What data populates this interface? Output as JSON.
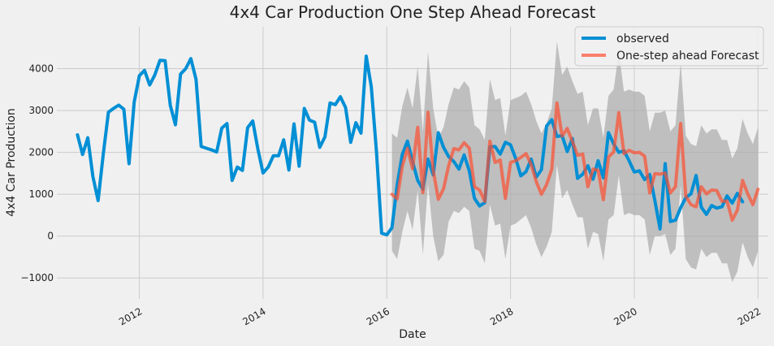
{
  "chart_data": {
    "type": "line",
    "title": "4x4 Car Production One Step Ahead Forecast",
    "xlabel": "Date",
    "ylabel": "4x4 Car Production",
    "x_range": [
      "2010-09-01",
      "2022-03-01"
    ],
    "ylim": [
      -1500,
      5000
    ],
    "x_ticks": [
      "2012",
      "2014",
      "2016",
      "2018",
      "2020",
      "2022"
    ],
    "y_ticks": [
      -1000,
      0,
      1000,
      2000,
      3000,
      4000
    ],
    "grid": true,
    "legend_position": "top-right",
    "colors": {
      "observed": "#008fd5",
      "forecast": "#fc4f30",
      "ci": "#aaaaaa",
      "background": "#f0f0f0",
      "grid": "#cbcbcb"
    },
    "observed": {
      "name": "observed",
      "start": "2011-01",
      "values": [
        2420,
        1950,
        2350,
        1420,
        850,
        1950,
        2960,
        3050,
        3130,
        3030,
        1730,
        3200,
        3830,
        3960,
        3610,
        3850,
        4200,
        4190,
        3120,
        2660,
        3870,
        4000,
        4240,
        3740,
        2140,
        2100,
        2060,
        2010,
        2580,
        2690,
        1330,
        1650,
        1570,
        2590,
        2750,
        2070,
        1510,
        1650,
        1920,
        1920,
        2300,
        1580,
        2680,
        1670,
        3050,
        2770,
        2720,
        2120,
        2370,
        3180,
        3140,
        3330,
        3070,
        2240,
        2710,
        2460,
        4300,
        3560,
        2000,
        70,
        30,
        200,
        1220,
        1950,
        2270,
        1780,
        1330,
        1120,
        1840,
        1460,
        2470,
        2120,
        1900,
        1780,
        1600,
        1940,
        1560,
        900,
        720,
        800,
        2130,
        2140,
        1960,
        2240,
        2180,
        1850,
        1440,
        1540,
        1840,
        1410,
        1590,
        2630,
        2780,
        2380,
        2400,
        2020,
        2330,
        1380,
        1480,
        1680,
        1360,
        1800,
        1390,
        2470,
        2200,
        2000,
        2040,
        1800,
        1530,
        1560,
        1350,
        1470,
        850,
        170,
        1730,
        350,
        380,
        680,
        920,
        1010,
        1450,
        690,
        520,
        730,
        670,
        700,
        960,
        790,
        1020,
        820
      ],
      "_unused": null
    },
    "forecast": {
      "name": "One-step ahead Forecast",
      "start": "2016-02",
      "values": [
        1000,
        890,
        1670,
        2100,
        1610,
        2600,
        1040,
        2960,
        1570,
        880,
        1130,
        1680,
        2090,
        2060,
        2230,
        2100,
        1180,
        1100,
        830,
        2270,
        1760,
        1820,
        900,
        1760,
        1800,
        1880,
        1970,
        1710,
        1300,
        1000,
        1230,
        1600,
        3180,
        2390,
        2570,
        2260,
        1930,
        1960,
        1180,
        1600,
        1570,
        870,
        1890,
        2010,
        2950,
        1970,
        2050,
        1990,
        2000,
        1910,
        1030,
        1490,
        1480,
        1510,
        1030,
        1180,
        2690,
        950,
        750,
        700,
        1180,
        1010,
        1100,
        1090,
        830,
        840,
        380,
        620,
        1330,
        1010,
        750,
        1120
      ]
    },
    "confidence_interval": {
      "lower": [
        -350,
        -550,
        100,
        600,
        150,
        1100,
        -450,
        1250,
        0,
        -600,
        -450,
        350,
        600,
        550,
        700,
        600,
        -300,
        -350,
        -650,
        750,
        250,
        300,
        -550,
        250,
        300,
        400,
        500,
        200,
        -200,
        -500,
        -250,
        100,
        1700,
        900,
        1100,
        750,
        450,
        450,
        -300,
        100,
        50,
        -600,
        400,
        500,
        1450,
        500,
        550,
        500,
        500,
        400,
        -450,
        0,
        0,
        50,
        -450,
        -300,
        1200,
        -550,
        -750,
        -800,
        -300,
        -500,
        -400,
        -400,
        -650,
        -650,
        -1100,
        -850,
        -150,
        -500,
        -750,
        -350
      ],
      "upper": [
        2450,
        2350,
        3100,
        3550,
        3050,
        4050,
        2500,
        4400,
        3050,
        2350,
        2600,
        3150,
        3550,
        3500,
        3700,
        3550,
        2650,
        2550,
        2300,
        3750,
        3250,
        3300,
        2400,
        3250,
        3300,
        3350,
        3450,
        3150,
        2750,
        2450,
        2700,
        3050,
        4650,
        3850,
        4050,
        3700,
        3400,
        3450,
        2650,
        3050,
        3050,
        2350,
        3350,
        3500,
        4400,
        3450,
        3500,
        3450,
        3450,
        3350,
        2500,
        2950,
        2950,
        3000,
        2500,
        2650,
        4150,
        2400,
        2200,
        2150,
        2650,
        2450,
        2550,
        2550,
        2300,
        2300,
        1850,
        2100,
        2800,
        2450,
        2200,
        2600
      ]
    }
  }
}
